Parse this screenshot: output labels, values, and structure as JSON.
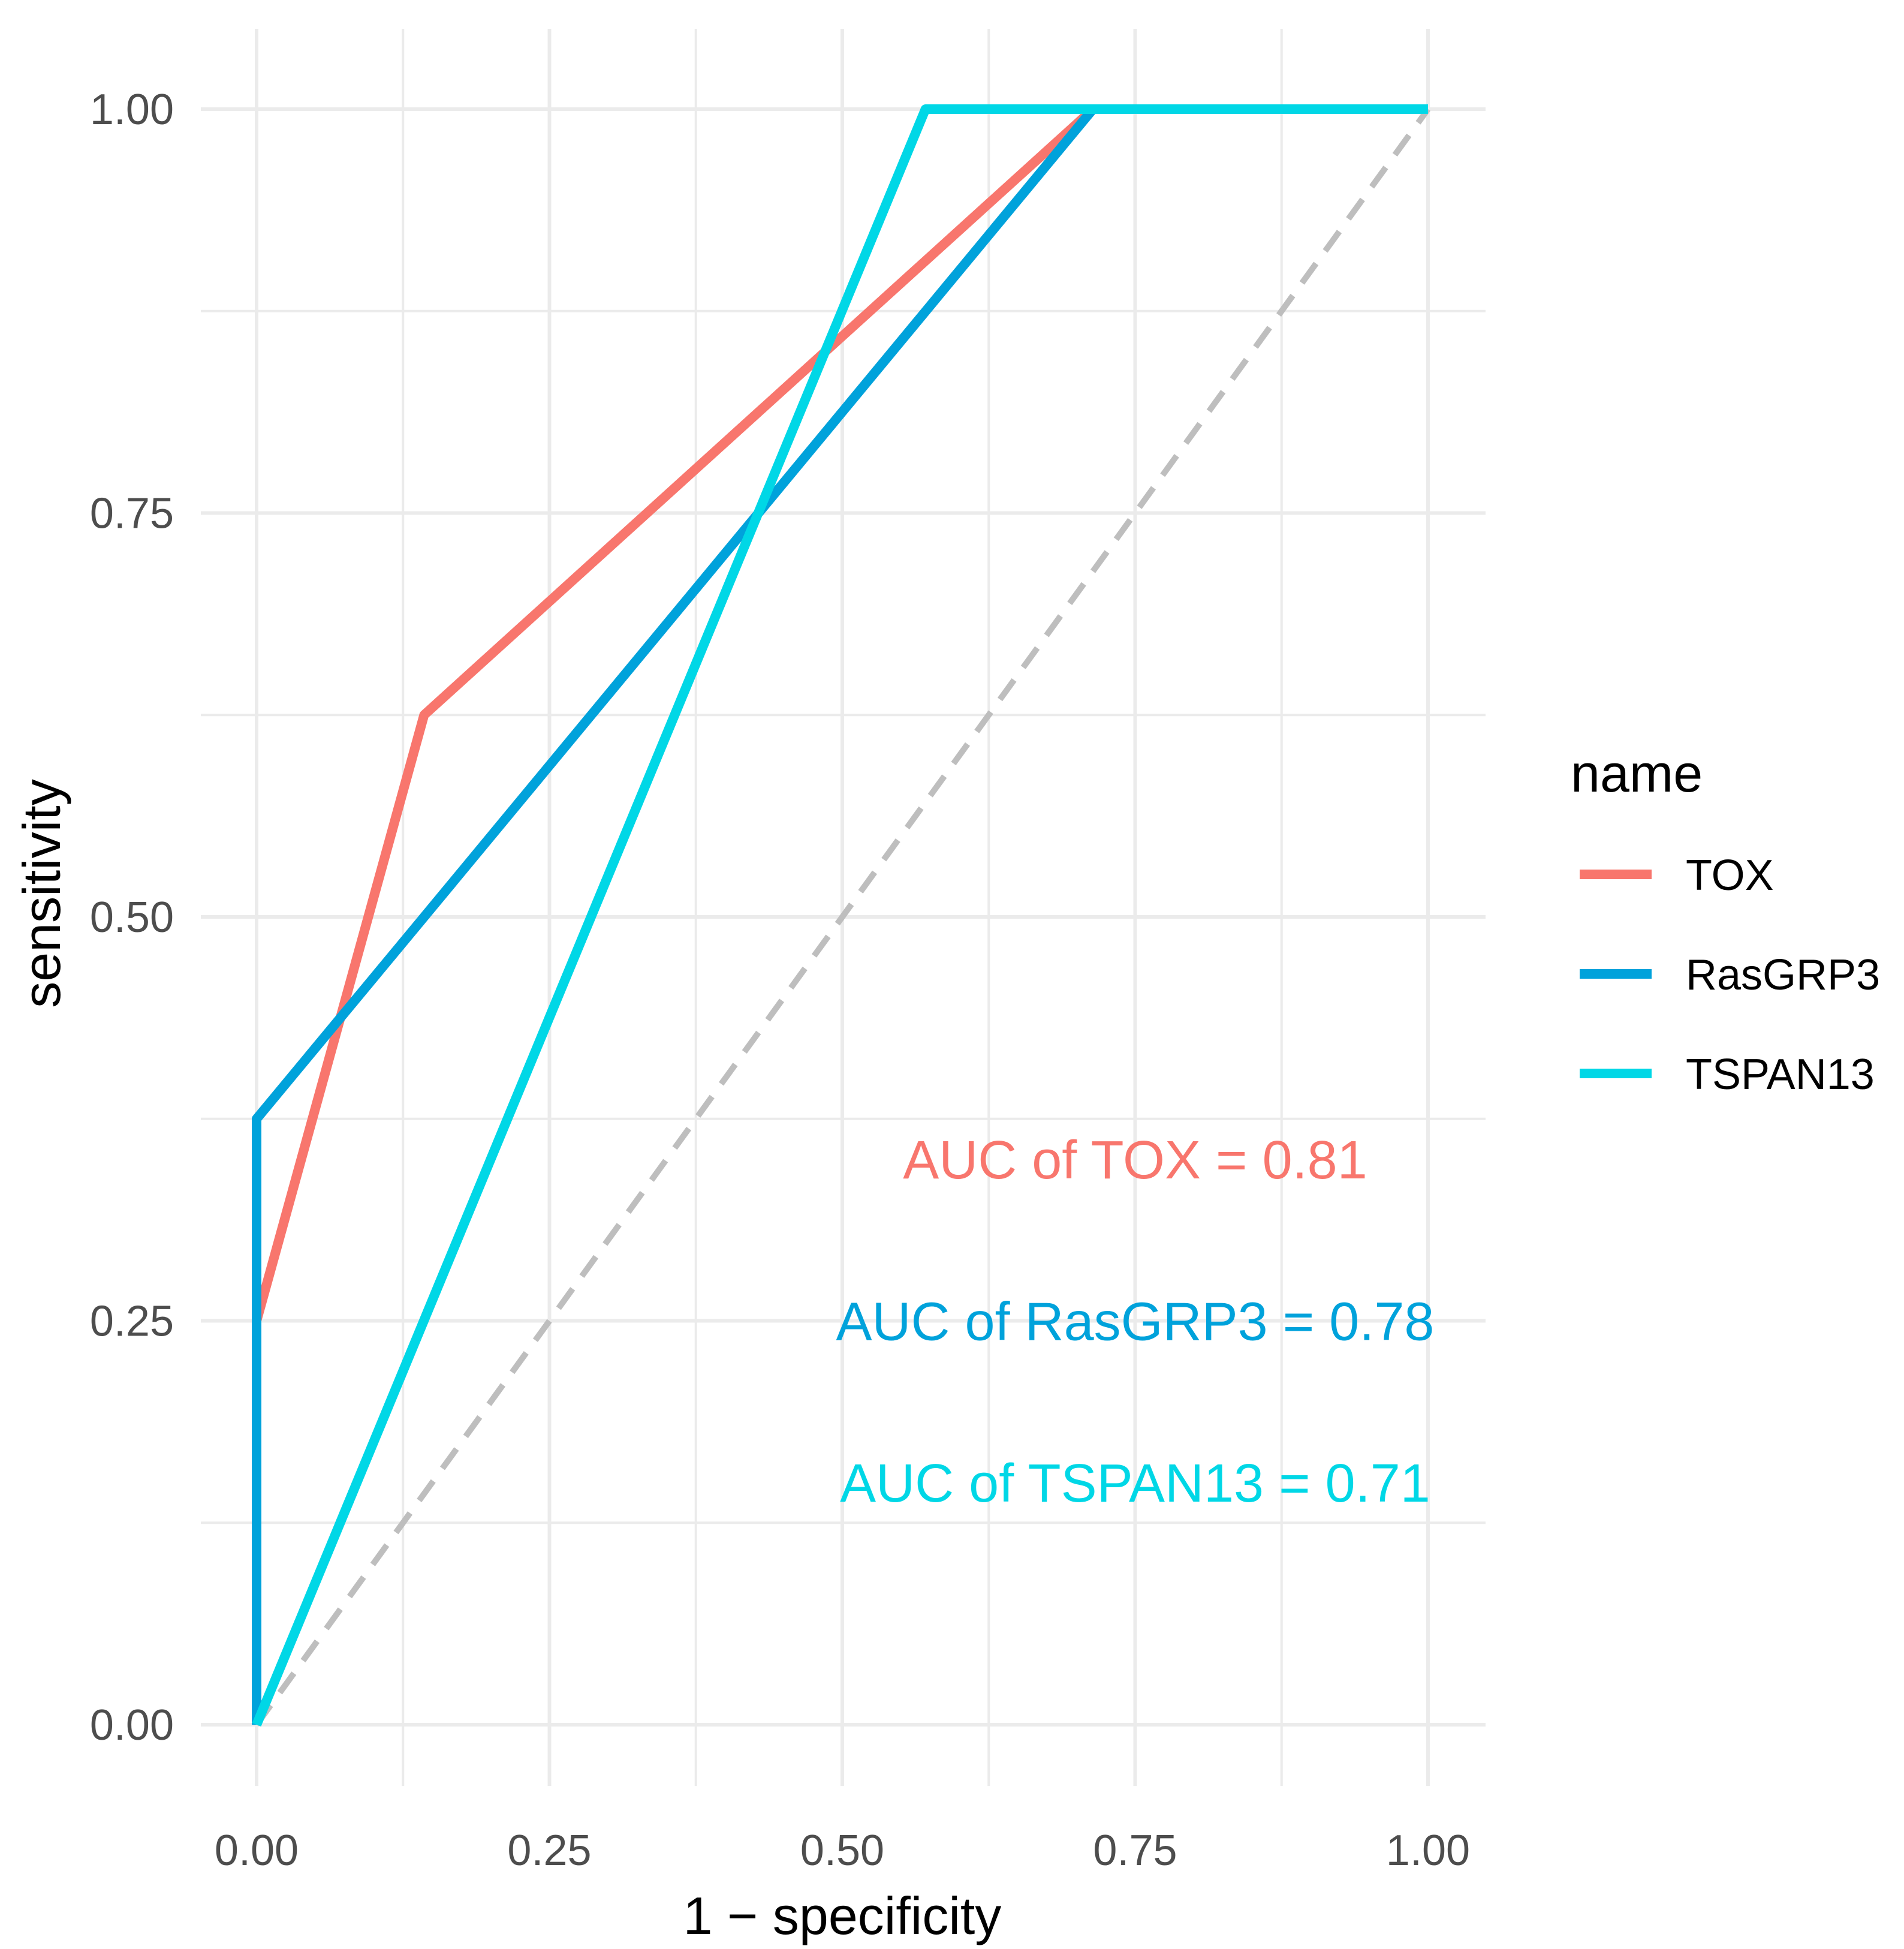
{
  "chart_data": {
    "type": "line",
    "title": "",
    "xlabel": "1 − specificity",
    "ylabel": "sensitivity",
    "xlim": [
      0,
      1
    ],
    "ylim": [
      0,
      1
    ],
    "x_ticks": [
      0,
      0.25,
      0.5,
      0.75,
      1
    ],
    "y_ticks": [
      0,
      0.25,
      0.5,
      0.75,
      1
    ],
    "x_tick_labels": [
      "0.00",
      "0.25",
      "0.50",
      "0.75",
      "1.00"
    ],
    "y_tick_labels": [
      "0.00",
      "0.25",
      "0.50",
      "0.75",
      "1.00"
    ],
    "grid": true,
    "legend": {
      "title": "name",
      "position": "right"
    },
    "series": [
      {
        "name": "TOX",
        "color": "#F8766D",
        "points": [
          [
            0,
            0
          ],
          [
            0,
            0.25
          ],
          [
            0.143,
            0.625
          ],
          [
            0.714,
            1.0
          ],
          [
            1.0,
            1.0
          ]
        ]
      },
      {
        "name": "RasGRP3",
        "color": "#00A2DB",
        "points": [
          [
            0,
            0
          ],
          [
            0,
            0.375
          ],
          [
            0.143,
            0.5
          ],
          [
            0.714,
            1.0
          ],
          [
            1.0,
            1.0
          ]
        ]
      },
      {
        "name": "TSPAN13",
        "color": "#00D7E6",
        "points": [
          [
            0,
            0
          ],
          [
            0.571,
            1.0
          ],
          [
            1.0,
            1.0
          ]
        ]
      }
    ],
    "reference_line": {
      "points": [
        [
          0,
          0
        ],
        [
          1,
          1
        ]
      ],
      "color": "#BEBEBE",
      "style": "dashed"
    },
    "annotations": [
      {
        "text": "AUC of TOX =  0.81",
        "x": 0.75,
        "y": 0.35,
        "color": "#F8766D"
      },
      {
        "text": "AUC of RasGRP3 =  0.78",
        "x": 0.75,
        "y": 0.25,
        "color": "#00A2DB"
      },
      {
        "text": "AUC of TSPAN13 =  0.71",
        "x": 0.75,
        "y": 0.15,
        "color": "#00D7E6"
      }
    ]
  }
}
